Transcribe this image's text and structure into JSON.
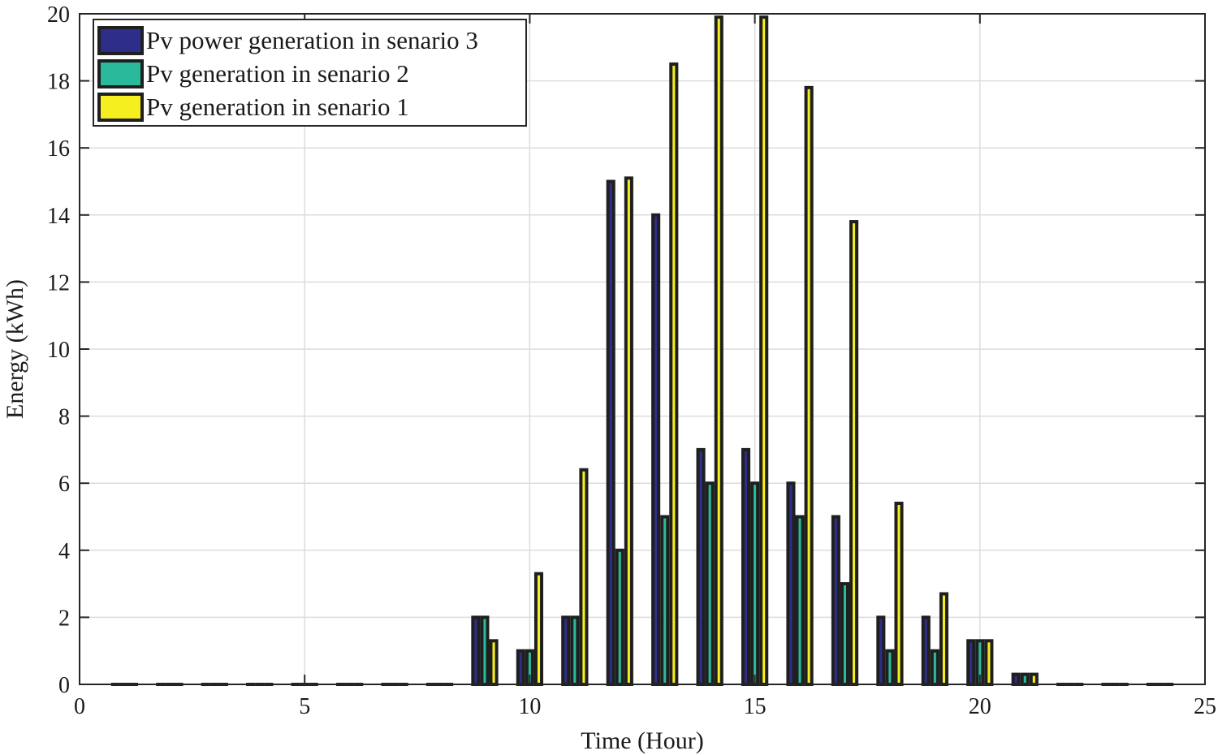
{
  "chart_data": {
    "type": "bar",
    "title": "",
    "xlabel": "Time (Hour)",
    "ylabel": "Energy (kWh)",
    "xlim": [
      0,
      25
    ],
    "ylim": [
      0,
      20
    ],
    "xticks": [
      0,
      5,
      10,
      15,
      20,
      25
    ],
    "yticks": [
      0,
      2,
      4,
      6,
      8,
      10,
      12,
      14,
      16,
      18,
      20
    ],
    "grid": true,
    "legend_position": "top-left",
    "x": [
      1,
      2,
      3,
      4,
      5,
      6,
      7,
      8,
      9,
      10,
      11,
      12,
      13,
      14,
      15,
      16,
      17,
      18,
      19,
      20,
      21,
      22,
      23,
      24
    ],
    "series": [
      {
        "name": "Pv power generation in senario 3",
        "color": "#2e2e8a",
        "values": [
          0,
          0,
          0,
          0,
          0,
          0,
          0,
          0,
          2,
          1,
          2,
          15,
          14,
          7,
          7,
          6,
          5,
          2,
          2,
          1.3,
          0.3,
          0,
          0,
          0
        ]
      },
      {
        "name": "Pv generation in senario 2",
        "color": "#2ab99a",
        "values": [
          0,
          0,
          0,
          0,
          0,
          0,
          0,
          0,
          2,
          1,
          2,
          4,
          5,
          6,
          6,
          5,
          3,
          1,
          1,
          1.3,
          0.3,
          0,
          0,
          0
        ]
      },
      {
        "name": "Pv generation in senario 1",
        "color": "#f5ef1f",
        "values": [
          0,
          0,
          0,
          0,
          0,
          0,
          0,
          0,
          1.3,
          3.3,
          6.4,
          15.1,
          18.5,
          19.9,
          19.9,
          17.8,
          13.8,
          5.4,
          2.7,
          1.3,
          0.3,
          0,
          0,
          0
        ]
      }
    ]
  }
}
